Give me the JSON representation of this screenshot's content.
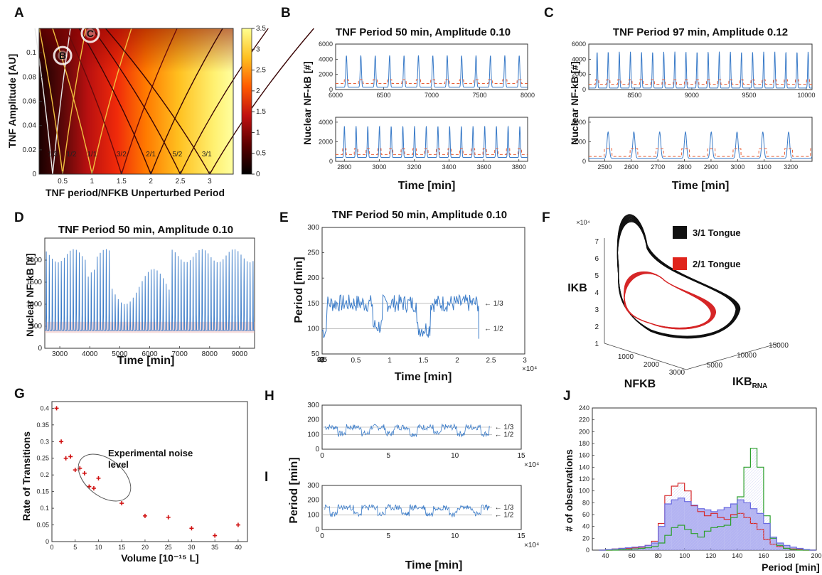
{
  "panels": {
    "A": {
      "label": "A",
      "xlabel": "TNF period/NFKB Unperturbed Period",
      "ylabel": "TNF Amplitude [AU]",
      "xticks": [
        "0.5",
        "1",
        "1.5",
        "2",
        "2.5",
        "3"
      ],
      "yticks": [
        "0",
        "0.02",
        "0.04",
        "0.06",
        "0.08",
        "0.1"
      ],
      "cbar_ticks": [
        "0",
        "0.5",
        "1",
        "1.5",
        "2",
        "2.5",
        "3",
        "3.5"
      ],
      "markers": [
        "B",
        "C"
      ],
      "tongues": [
        "1/3",
        "1/2",
        "1/1",
        "3/2",
        "2/1",
        "5/2",
        "3/1"
      ]
    },
    "B": {
      "label": "B",
      "title": "TNF Period 50 min, Amplitude 0.10",
      "xlabel": "Time [min]",
      "ylabel": "Nuclear NF-kB [#]",
      "top_xticks": [
        "6000",
        "6500",
        "7000",
        "7500",
        "8000"
      ],
      "top_yticks": [
        "0",
        "2000",
        "4000",
        "6000"
      ],
      "bot_xticks": [
        "2800",
        "3000",
        "3200",
        "3400",
        "3600",
        "3800"
      ],
      "bot_yticks": [
        "0",
        "2000",
        "4000"
      ]
    },
    "C": {
      "label": "C",
      "title": "TNF Period 97 min, Amplitude 0.12",
      "xlabel": "Time [min]",
      "ylabel": "Nuclear NF-kB [#]",
      "top_xticks": [
        "8500",
        "9000",
        "9500",
        "10000"
      ],
      "top_yticks": [
        "0",
        "2000",
        "4000",
        "6000"
      ],
      "bot_xticks": [
        "2500",
        "2600",
        "2700",
        "2800",
        "2900",
        "3000",
        "3100",
        "3200"
      ],
      "bot_yticks": [
        "0",
        "2000",
        "4000"
      ]
    },
    "D": {
      "label": "D",
      "title": "TNF Period 50 min, Amplitude 0.10",
      "xlabel": "Time [min]",
      "ylabel": "Nuclear NF-kB [#]",
      "xticks": [
        "3000",
        "4000",
        "5000",
        "6000",
        "7000",
        "8000",
        "9000"
      ],
      "yticks": [
        "0",
        "500",
        "1000",
        "1500",
        "2000"
      ]
    },
    "E": {
      "label": "E",
      "title": "TNF Period 50 min, Amplitude 0.10",
      "xlabel": "Time [min]",
      "ylabel": "Period [min]",
      "xticks": [
        "0",
        "0.5",
        "1",
        "1.5",
        "2",
        "2.5",
        "3"
      ],
      "yticks": [
        "50",
        "100",
        "150",
        "200",
        "250",
        "300"
      ],
      "multiplier": "×10⁴",
      "ref_third": "← 1/3",
      "ref_half": "← 1/2"
    },
    "F": {
      "label": "F",
      "xlabel": "NFKB",
      "ylabel": "IKB",
      "zlabel_main": "IKB",
      "zlabel_sub": "RNA",
      "z_multiplier": "×10⁴",
      "yticks": [
        "1",
        "2",
        "3",
        "4",
        "5",
        "6",
        "7"
      ],
      "xticks": [
        "1000",
        "2000",
        "3000"
      ],
      "zticks": [
        "5000",
        "10000",
        "15000"
      ],
      "legend": [
        {
          "name": "3/1 Tongue",
          "color": "#111111"
        },
        {
          "name": "2/1 Tongue",
          "color": "#e0241b"
        }
      ]
    },
    "G": {
      "label": "G",
      "xlabel": "Volume [10⁻¹⁵ L]",
      "ylabel": "Rate of Transitions",
      "annotation_line1": "Experimental noise",
      "annotation_line2": "level",
      "xticks": [
        "0",
        "5",
        "10",
        "15",
        "20",
        "25",
        "30",
        "35",
        "40"
      ],
      "yticks": [
        "0",
        "0.05",
        "0.1",
        "0.15",
        "0.2",
        "0.25",
        "0.3",
        "0.35",
        "0.4"
      ]
    },
    "H": {
      "label": "H",
      "xticks": [
        "0",
        "5",
        "10",
        "15"
      ],
      "yticks": [
        "0",
        "100",
        "200",
        "300"
      ],
      "multiplier": "×10⁴",
      "ref_third": "← 1/3",
      "ref_half": "← 1/2"
    },
    "I": {
      "label": "I",
      "xlabel": "Time [min]",
      "ylabel": "Period [min]",
      "xticks": [
        "0",
        "5",
        "10",
        "15"
      ],
      "yticks": [
        "0",
        "100",
        "200",
        "300"
      ],
      "multiplier": "×10⁴",
      "ref_third": "← 1/3",
      "ref_half": "← 1/2"
    },
    "J": {
      "label": "J",
      "xlabel": "Period [min]",
      "ylabel": "# of observations",
      "xticks": [
        "40",
        "60",
        "80",
        "100",
        "120",
        "140",
        "160",
        "180",
        "200"
      ],
      "yticks": [
        "0",
        "20",
        "40",
        "60",
        "80",
        "100",
        "120",
        "140",
        "160",
        "180",
        "200",
        "220",
        "240"
      ]
    }
  },
  "colors": {
    "trace": "#3a7bc8",
    "tnf": "#e8613a",
    "red": "#d62728",
    "green": "#2ca02c",
    "blue_fill": "#9a9aee",
    "black": "#111111"
  },
  "chart_data": [
    {
      "panel": "A",
      "type": "heatmap",
      "x_range": [
        0.1,
        3.4
      ],
      "y_range": [
        0,
        0.12
      ],
      "colorbar_range": [
        0,
        3.5
      ],
      "markers": [
        {
          "name": "B",
          "x": 0.5,
          "y": 0.1
        },
        {
          "name": "C",
          "x": 0.97,
          "y": 0.12
        }
      ]
    },
    {
      "panel": "B-top",
      "type": "line",
      "x_range": [
        6000,
        8000
      ],
      "y_range": [
        0,
        6000
      ],
      "period": 150,
      "peak": 4500,
      "baseline": 300
    },
    {
      "panel": "B-bottom",
      "type": "line",
      "x_range": [
        2750,
        3850
      ],
      "y_range": [
        0,
        4500
      ],
      "period": 67,
      "peak": 3600,
      "baseline": 400
    },
    {
      "panel": "C-top",
      "type": "line",
      "x_range": [
        8100,
        10050
      ],
      "y_range": [
        0,
        6000
      ],
      "period": 97,
      "peak": 5000,
      "baseline": 200
    },
    {
      "panel": "C-bottom",
      "type": "line",
      "x_range": [
        2440,
        3280
      ],
      "y_range": [
        0,
        4500
      ],
      "period": 97,
      "peak": 3000,
      "baseline": 300
    },
    {
      "panel": "D",
      "type": "line",
      "x_range": [
        2500,
        9500
      ],
      "y_range": [
        0,
        2500
      ],
      "period": 100
    },
    {
      "panel": "E",
      "type": "line",
      "x_range": [
        0,
        30000
      ],
      "y_range": [
        50,
        300
      ],
      "ref_lines": [
        150,
        100
      ]
    },
    {
      "panel": "F",
      "type": "line",
      "series": [
        {
          "name": "3/1 Tongue"
        },
        {
          "name": "2/1 Tongue"
        }
      ]
    },
    {
      "panel": "G",
      "type": "scatter",
      "xlim": [
        0,
        42
      ],
      "ylim": [
        0,
        0.42
      ],
      "x": [
        1,
        2,
        3,
        4,
        5,
        6,
        7,
        8,
        9,
        10,
        15,
        20,
        25,
        30,
        35,
        40
      ],
      "y": [
        0.4,
        0.3,
        0.25,
        0.255,
        0.215,
        0.22,
        0.205,
        0.165,
        0.16,
        0.19,
        0.115,
        0.077,
        0.073,
        0.04,
        0.018,
        0.05
      ]
    },
    {
      "panel": "H",
      "type": "line",
      "x_range": [
        0,
        150000
      ],
      "y_range": [
        0,
        300
      ],
      "ref_lines": [
        150,
        100
      ]
    },
    {
      "panel": "I",
      "type": "line",
      "x_range": [
        0,
        150000
      ],
      "y_range": [
        0,
        300
      ],
      "ref_lines": [
        150,
        100
      ]
    },
    {
      "panel": "J",
      "type": "bar",
      "xlim": [
        30,
        200
      ],
      "ylim": [
        0,
        240
      ],
      "bin_width": 5,
      "bins": [
        35,
        40,
        45,
        50,
        55,
        60,
        65,
        70,
        75,
        80,
        85,
        90,
        95,
        100,
        105,
        110,
        115,
        120,
        125,
        130,
        135,
        140,
        145,
        150,
        155,
        160,
        165,
        170,
        175,
        180,
        185,
        190,
        195
      ],
      "series": [
        {
          "color": "red",
          "values": [
            0,
            0,
            2,
            3,
            3,
            4,
            5,
            8,
            15,
            45,
            92,
            108,
            113,
            100,
            75,
            65,
            58,
            62,
            55,
            52,
            60,
            62,
            55,
            45,
            35,
            18,
            10,
            6,
            3,
            2,
            1,
            0,
            0
          ]
        },
        {
          "color": "green",
          "values": [
            0,
            0,
            0,
            1,
            1,
            2,
            3,
            4,
            6,
            12,
            25,
            38,
            42,
            35,
            28,
            22,
            32,
            38,
            40,
            42,
            55,
            90,
            140,
            172,
            140,
            58,
            20,
            8,
            3,
            1,
            0,
            0,
            0
          ]
        },
        {
          "color": "blue",
          "values": [
            0,
            1,
            2,
            3,
            4,
            5,
            6,
            8,
            12,
            40,
            78,
            85,
            88,
            82,
            76,
            70,
            68,
            65,
            68,
            72,
            78,
            85,
            80,
            70,
            62,
            45,
            22,
            12,
            8,
            5,
            3,
            1,
            0
          ]
        }
      ]
    }
  ]
}
